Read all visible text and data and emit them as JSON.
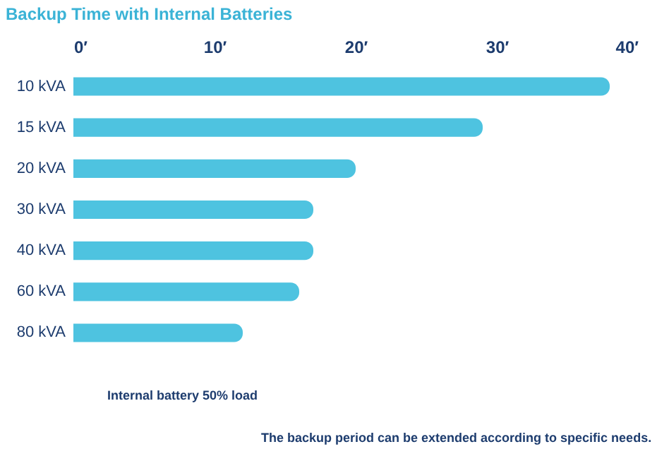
{
  "chart_data": {
    "type": "bar",
    "orientation": "horizontal",
    "title": "Backup Time with Internal Batteries",
    "categories": [
      "10 kVA",
      "15 kVA",
      "20 kVA",
      "30 kVA",
      "40 kVA",
      "60 kVA",
      "80 kVA"
    ],
    "series": [
      {
        "name": "Internal battery 50% load",
        "color": "#4ec3e0",
        "values": [
          38,
          29,
          20,
          17,
          17,
          16,
          12
        ]
      }
    ],
    "xlim": [
      0,
      40
    ],
    "xticks": [
      {
        "value": 0,
        "label": "0′"
      },
      {
        "value": 10,
        "label": "10′"
      },
      {
        "value": 20,
        "label": "20′"
      },
      {
        "value": 30,
        "label": "30′"
      },
      {
        "value": 40,
        "label": "40′"
      }
    ],
    "grid": false,
    "legend": "bottom",
    "annotations": [
      "The backup period can be extended according to specific needs."
    ]
  }
}
